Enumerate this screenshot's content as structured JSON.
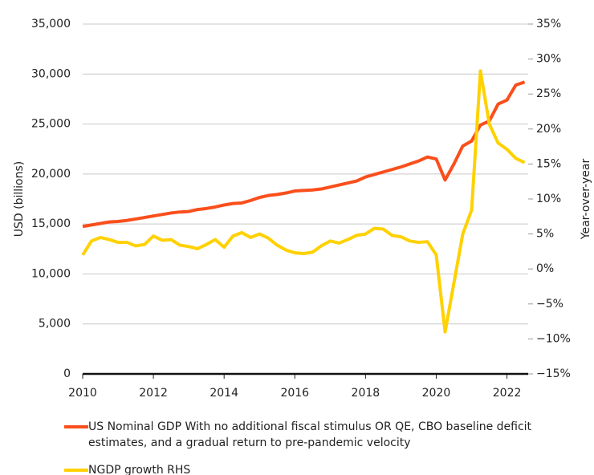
{
  "chart_data": {
    "type": "line",
    "y_label": "USD (billions)",
    "y2_label": "Year-over-year",
    "x": [
      2010,
      2010.25,
      2010.5,
      2010.75,
      2011,
      2011.25,
      2011.5,
      2011.75,
      2012,
      2012.25,
      2012.5,
      2012.75,
      2013,
      2013.25,
      2013.5,
      2013.75,
      2014,
      2014.25,
      2014.5,
      2014.75,
      2015,
      2015.25,
      2015.5,
      2015.75,
      2016,
      2016.25,
      2016.5,
      2016.75,
      2017,
      2017.25,
      2017.5,
      2017.75,
      2018,
      2018.25,
      2018.5,
      2018.75,
      2019,
      2019.25,
      2019.5,
      2019.75,
      2020,
      2020.25,
      2020.5,
      2020.75,
      2021,
      2021.25,
      2021.5,
      2021.75,
      2022,
      2022.25,
      2022.5
    ],
    "series": [
      {
        "name": "US Nominal GDP With no additional fiscal stimulus OR QE, CBO baseline deficit estimates, and a gradual return to pre-pandemic velocity",
        "color": "#fa4f1c",
        "values": [
          14750,
          14900,
          15050,
          15200,
          15250,
          15350,
          15500,
          15650,
          15800,
          15950,
          16100,
          16200,
          16250,
          16450,
          16550,
          16700,
          16900,
          17050,
          17100,
          17350,
          17650,
          17850,
          17950,
          18100,
          18300,
          18350,
          18400,
          18500,
          18700,
          18900,
          19100,
          19300,
          19700,
          19950,
          20200,
          20450,
          20700,
          21000,
          21300,
          21700,
          21500,
          19400,
          21000,
          22800,
          23300,
          24900,
          25300,
          27000,
          27400,
          28900,
          29200
        ]
      },
      {
        "name": "NGDP growth RHS",
        "color": "#ffd100",
        "axis": "y2",
        "values": [
          2.0,
          4.0,
          4.5,
          4.2,
          3.8,
          3.8,
          3.3,
          3.5,
          4.7,
          4.1,
          4.2,
          3.4,
          3.2,
          2.9,
          3.5,
          4.2,
          3.1,
          4.7,
          5.2,
          4.5,
          5.0,
          4.4,
          3.4,
          2.7,
          2.3,
          2.2,
          2.4,
          3.3,
          4.0,
          3.7,
          4.2,
          4.8,
          5.0,
          5.8,
          5.7,
          4.8,
          4.6,
          4.0,
          3.8,
          3.9,
          2.0,
          -9.0,
          -2.0,
          5.0,
          8.4,
          28.3,
          20.7,
          18.0,
          17.1,
          15.8,
          15.2
        ]
      }
    ],
    "xlim": [
      2010,
      2022.6
    ],
    "xticks": [
      2010,
      2012,
      2014,
      2016,
      2018,
      2020,
      2022
    ],
    "ylim": [
      0,
      35000
    ],
    "yticks": [
      0,
      {
        "value": 5000,
        "label": "5,000"
      },
      {
        "value": 10000,
        "label": "10,000"
      },
      {
        "value": 15000,
        "label": "15,000"
      },
      {
        "value": 20000,
        "label": "20,000"
      },
      {
        "value": 25000,
        "label": "25,000"
      },
      {
        "value": 30000,
        "label": "30,000"
      },
      {
        "value": 35000,
        "label": "35,000"
      }
    ],
    "y2lim": [
      -15,
      35
    ],
    "y2ticks": [
      {
        "value": -15,
        "label": "−15%"
      },
      {
        "value": -10,
        "label": "−10%"
      },
      {
        "value": -5,
        "label": "−5%"
      },
      {
        "value": 0,
        "label": "0%"
      },
      {
        "value": 5,
        "label": "5%"
      },
      {
        "value": 10,
        "label": "10%"
      },
      {
        "value": 15,
        "label": "15%"
      },
      {
        "value": 20,
        "label": "20%"
      },
      {
        "value": 25,
        "label": "25%"
      },
      {
        "value": 30,
        "label": "30%"
      },
      {
        "value": 35,
        "label": "35%"
      }
    ],
    "grid": true,
    "legend": "bottom"
  }
}
